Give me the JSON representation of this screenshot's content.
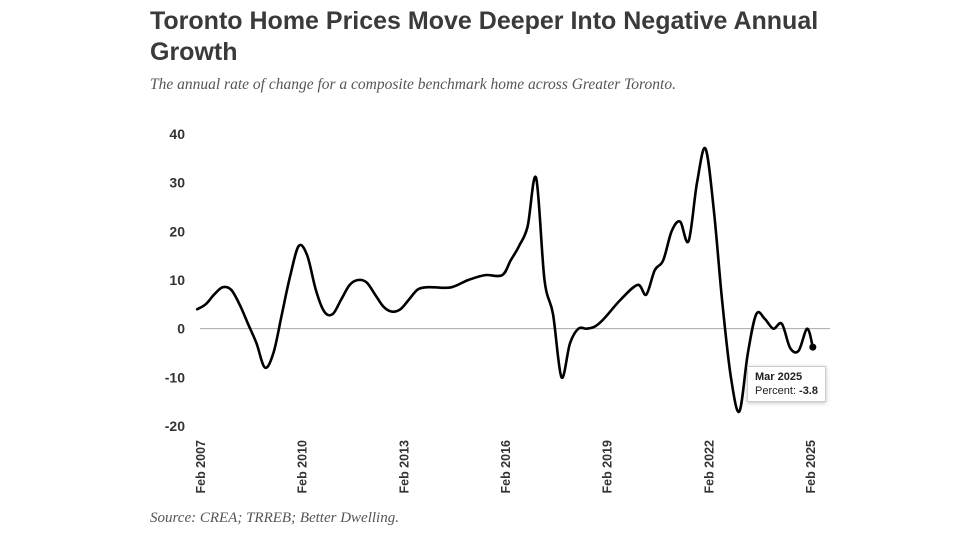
{
  "header": {
    "title": "Toronto Home Prices Move Deeper Into Negative Annual Growth",
    "subtitle": "The annual rate of change for a composite benchmark home across Greater Toronto."
  },
  "footer": {
    "source": "Source: CREA; TRREB; Better Dwelling."
  },
  "tooltip": {
    "date": "Mar 2025",
    "label": "Percent: ",
    "value": "-3.8"
  },
  "chart_data": {
    "type": "line",
    "title": "Toronto Home Prices Move Deeper Into Negative Annual Growth",
    "subtitle": "The annual rate of change for a composite benchmark home across Greater Toronto.",
    "xlabel": "",
    "ylabel": "",
    "ylim": [
      -20,
      40
    ],
    "yticks": [
      40,
      30,
      20,
      10,
      0,
      -10,
      -20
    ],
    "xticks": [
      "Feb 2007",
      "Feb 2010",
      "Feb 2013",
      "Feb 2016",
      "Feb 2019",
      "Feb 2022",
      "Feb 2025"
    ],
    "grid": false,
    "line_color": "#000000",
    "zero_line_color": "#aaaaaa",
    "series": [
      {
        "x": [
          "2007-01",
          "2007-04",
          "2007-07",
          "2007-10",
          "2008-01",
          "2008-04",
          "2008-07",
          "2008-10",
          "2009-01",
          "2009-04",
          "2009-07",
          "2009-10",
          "2010-01",
          "2010-04",
          "2010-07",
          "2010-10",
          "2011-01",
          "2011-04",
          "2011-07",
          "2011-10",
          "2012-01",
          "2012-04",
          "2012-07",
          "2012-10",
          "2013-01",
          "2013-04",
          "2013-07",
          "2013-10",
          "2014-01",
          "2014-07",
          "2015-01",
          "2015-07",
          "2016-01",
          "2016-04",
          "2016-07",
          "2016-10",
          "2017-01",
          "2017-04",
          "2017-07",
          "2017-10",
          "2018-01",
          "2018-04",
          "2018-07",
          "2018-10",
          "2019-01",
          "2019-07",
          "2020-01",
          "2020-04",
          "2020-07",
          "2020-10",
          "2021-01",
          "2021-04",
          "2021-07",
          "2021-10",
          "2022-01",
          "2022-04",
          "2022-07",
          "2022-10",
          "2023-01",
          "2023-04",
          "2023-07",
          "2023-10",
          "2024-01",
          "2024-04",
          "2024-07",
          "2024-10",
          "2025-01",
          "2025-03"
        ],
        "values": [
          4,
          5,
          7,
          8.5,
          8,
          5,
          1,
          -3,
          -8,
          -5,
          3,
          11,
          17,
          15,
          8,
          3.5,
          3,
          6,
          9,
          10,
          9.5,
          7,
          4.5,
          3.5,
          4,
          6,
          8,
          8.5,
          8.5,
          8.5,
          10,
          11,
          11,
          14,
          17,
          21,
          31,
          10,
          3,
          -10,
          -3,
          0,
          0,
          0.5,
          2,
          6,
          9,
          7,
          12,
          14,
          20,
          22,
          18,
          30,
          37,
          24,
          5,
          -10,
          -17,
          -5,
          3,
          2,
          0,
          1,
          -4,
          -4.5,
          0,
          -3.8
        ]
      }
    ]
  }
}
